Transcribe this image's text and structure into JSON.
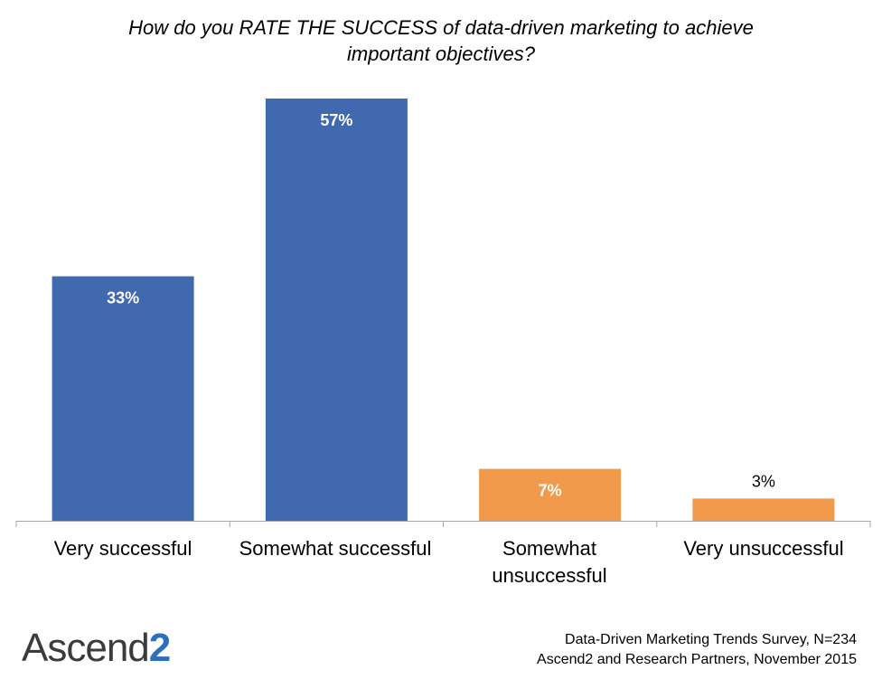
{
  "chart_data": {
    "type": "bar",
    "title_lines": [
      "How do you RATE THE SUCCESS of data-driven marketing to achieve",
      "important objectives?"
    ],
    "categories": [
      "Very successful",
      "Somewhat successful",
      "Somewhat unsuccessful",
      "Very unsuccessful"
    ],
    "category_lines": [
      [
        "Very successful"
      ],
      [
        "Somewhat successful"
      ],
      [
        "Somewhat",
        "unsuccessful"
      ],
      [
        "Very unsuccessful"
      ]
    ],
    "values": [
      33,
      57,
      7,
      3
    ],
    "data_labels": [
      "33%",
      "57%",
      "7%",
      "3%"
    ],
    "colors": [
      "#4169b0",
      "#4169b0",
      "#f29a4c",
      "#f29a4c"
    ],
    "label_colors": [
      "#ffffff",
      "#ffffff",
      "#ffffff",
      "#000000"
    ],
    "ylim": [
      0,
      57
    ],
    "xlabel": "",
    "ylabel": "",
    "grid": false,
    "legend": "none"
  },
  "source": {
    "line1": "Data-Driven Marketing Trends Survey, N=234",
    "line2": "Ascend2 and Research Partners, November 2015"
  },
  "logo": {
    "text": "Ascend",
    "digit": "2"
  },
  "colors": {
    "axis": "#a6a6a6",
    "bar_primary": "#4169b0",
    "bar_secondary": "#f29a4c"
  }
}
